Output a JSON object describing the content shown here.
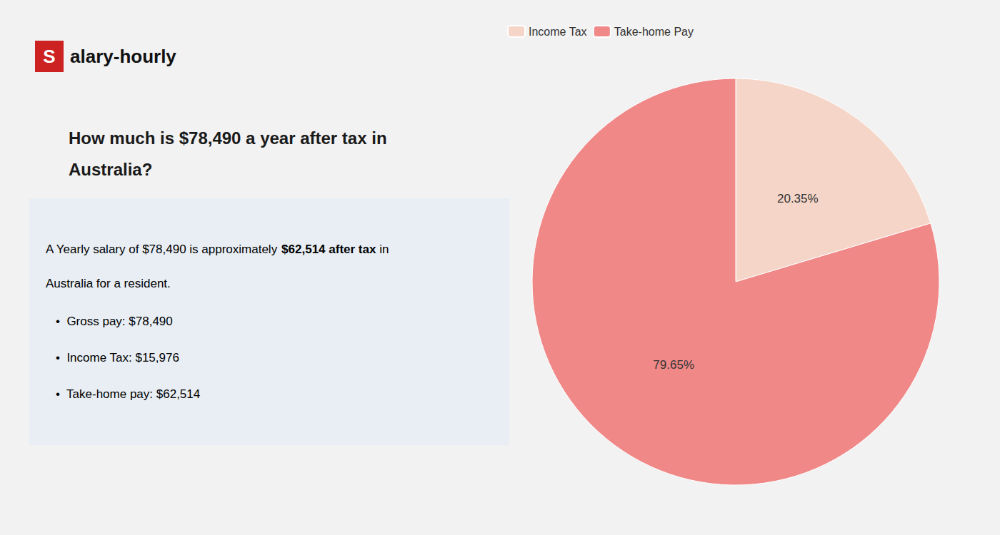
{
  "chart_data": {
    "type": "pie",
    "title": "How much is $78,490 a year after tax in\nAustralia?",
    "categories": [
      "Income Tax",
      "Take-home Pay"
    ],
    "values": [
      20.35,
      79.65
    ],
    "value_labels": [
      "20.35%",
      "79.65%"
    ],
    "colors": [
      "#f5d5c8",
      "#f08888"
    ],
    "data_labels": true,
    "legend": "upper left",
    "annotations": [
      [
        {
          "text": "S",
          "color": "#cc2222"
        },
        {
          "text": "alary-hourly"
        }
      ],
      [
        {
          "text": "A Yearly salary of $78,490 is approximately "
        },
        {
          "text": "$62,514 after tax",
          "color": "#cc1111"
        },
        {
          "text": " in"
        }
      ],
      [
        {
          "text": "Australia for a resident."
        }
      ],
      [
        {
          "text": "•  Gross pay: $78,490"
        }
      ],
      [
        {
          "text": "•  Income Tax: $15,976"
        }
      ],
      [
        {
          "text": "•  Take-home pay: $62,514"
        }
      ]
    ]
  }
}
